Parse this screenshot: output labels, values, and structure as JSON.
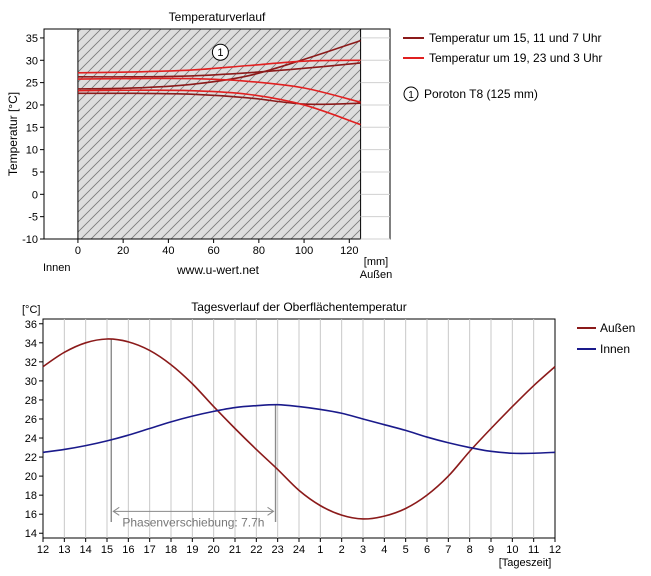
{
  "chart_data": [
    {
      "type": "line",
      "title": "Temperaturverlauf",
      "ylabel": "Temperatur [°C]",
      "xlabel": "[mm]",
      "x_unit": "[mm]",
      "left_label": "Innen",
      "right_label": "Außen",
      "watermark": "www.u-wert.net",
      "ylim": [
        -10,
        37
      ],
      "xlim": [
        -15,
        138
      ],
      "wall_range": [
        0,
        125
      ],
      "yticks": [
        -10,
        -5,
        0,
        5,
        10,
        15,
        20,
        25,
        30,
        35
      ],
      "xticks": [
        0,
        20,
        40,
        60,
        80,
        100,
        120
      ],
      "layer_marker": {
        "label": "1",
        "x": 63,
        "y": 31.8
      },
      "legend": [
        {
          "name": "Temperatur um 15, 11 und 7 Uhr",
          "color": "#8b1a1a"
        },
        {
          "name": "Temperatur um 19, 23 und 3 Uhr",
          "color": "#e02020"
        },
        {
          "name": "Poroton T8 (125 mm)",
          "marker": "1"
        }
      ],
      "series": [
        {
          "group": "15, 11, 7",
          "color": "#8b1a1a",
          "x": [
            0,
            25,
            50,
            75,
            100,
            125
          ],
          "y": [
            23.6,
            23.8,
            24.6,
            26.5,
            30.2,
            34.4
          ]
        },
        {
          "group": "15, 11, 7",
          "color": "#8b1a1a",
          "x": [
            0,
            25,
            50,
            75,
            100,
            125
          ],
          "y": [
            26.3,
            26.3,
            26.5,
            27.2,
            28.2,
            29.4
          ]
        },
        {
          "group": "15, 11, 7",
          "color": "#8b1a1a",
          "x": [
            0,
            25,
            50,
            75,
            100,
            125
          ],
          "y": [
            22.6,
            22.6,
            22.4,
            21.6,
            20.2,
            20.4
          ]
        },
        {
          "group": "19, 23, 3",
          "color": "#e02020",
          "x": [
            0,
            25,
            50,
            75,
            100,
            125
          ],
          "y": [
            27.2,
            27.4,
            27.8,
            28.8,
            29.8,
            30.0
          ]
        },
        {
          "group": "19, 23, 3",
          "color": "#e02020",
          "x": [
            0,
            25,
            50,
            75,
            100,
            125
          ],
          "y": [
            25.8,
            25.9,
            25.9,
            25.3,
            23.8,
            20.6
          ]
        },
        {
          "group": "19, 23, 3",
          "color": "#e02020",
          "x": [
            0,
            25,
            50,
            75,
            100,
            125
          ],
          "y": [
            23.2,
            23.3,
            23.2,
            22.4,
            20.0,
            15.6
          ]
        }
      ]
    },
    {
      "type": "line",
      "title": "Tagesverlauf der Oberflächentemperatur",
      "ylabel": "[°C]",
      "xlabel": "[Tageszeit]",
      "ylim": [
        13.5,
        36.5
      ],
      "yticks": [
        14,
        16,
        18,
        20,
        22,
        24,
        26,
        28,
        30,
        32,
        34,
        36
      ],
      "categories": [
        "12",
        "13",
        "14",
        "15",
        "16",
        "17",
        "18",
        "19",
        "20",
        "21",
        "22",
        "23",
        "24",
        "1",
        "2",
        "3",
        "4",
        "5",
        "6",
        "7",
        "8",
        "9",
        "10",
        "11",
        "12"
      ],
      "annotation": {
        "text": "Phasenverschiebung: 7.7h",
        "from_index": 3.2,
        "to_index": 10.9,
        "arrow_y": 16.3
      },
      "series": [
        {
          "name": "Außen",
          "color": "#8b1a1a",
          "values": [
            31.5,
            33.0,
            34.0,
            34.4,
            34.1,
            33.2,
            31.7,
            29.7,
            27.3,
            25.0,
            22.8,
            20.7,
            18.5,
            16.9,
            15.9,
            15.5,
            15.8,
            16.6,
            18.0,
            20.0,
            22.6,
            25.0,
            27.3,
            29.5,
            31.5
          ]
        },
        {
          "name": "Innen",
          "color": "#1a1a8b",
          "values": [
            22.5,
            22.8,
            23.2,
            23.7,
            24.3,
            25.0,
            25.7,
            26.3,
            26.8,
            27.2,
            27.4,
            27.5,
            27.3,
            27.0,
            26.6,
            26.0,
            25.4,
            24.8,
            24.1,
            23.5,
            23.0,
            22.6,
            22.4,
            22.4,
            22.5
          ]
        }
      ]
    }
  ]
}
